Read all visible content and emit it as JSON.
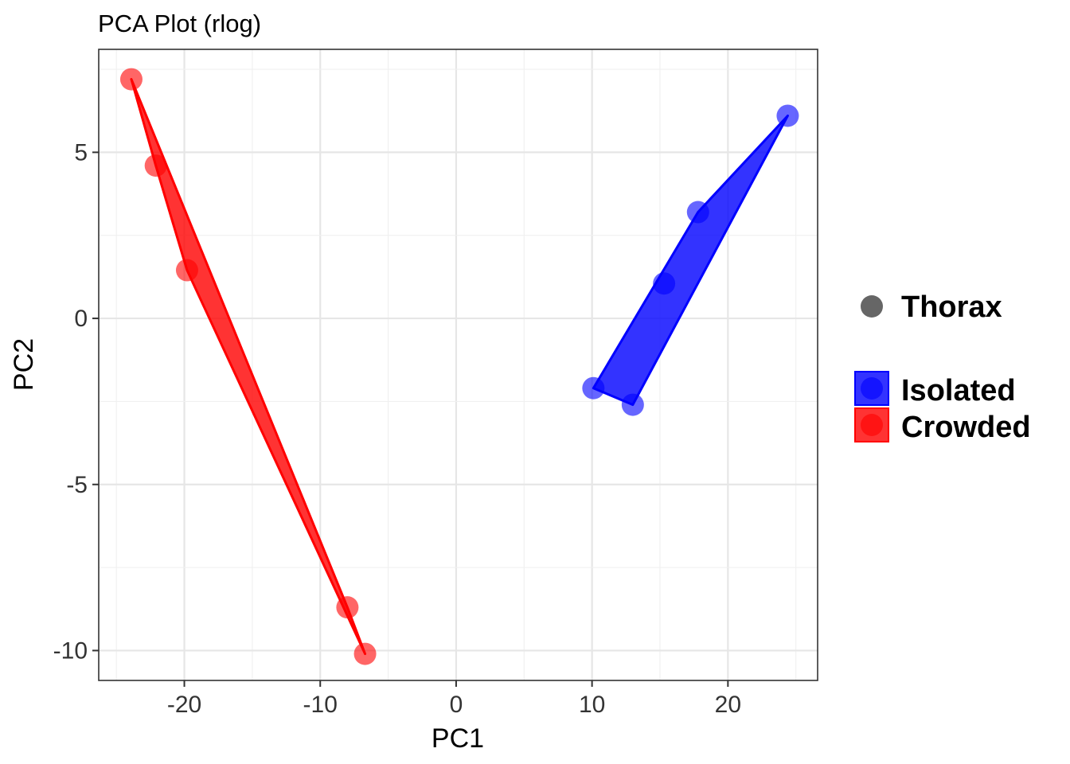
{
  "chart_data": {
    "type": "scatter",
    "title": "PCA Plot (rlog)",
    "xlabel": "PC1",
    "ylabel": "PC2",
    "xlim": [
      -26.3,
      26.6
    ],
    "ylim": [
      -10.9,
      8.1
    ],
    "x_ticks": [
      -20,
      -10,
      0,
      10,
      20
    ],
    "x_tick_labels": [
      "-20",
      "-10",
      "0",
      "10",
      "20"
    ],
    "y_ticks": [
      -10,
      -5,
      0,
      5
    ],
    "y_tick_labels": [
      "-10",
      "-5",
      "0",
      "5"
    ],
    "grid": true,
    "legend_position": "right",
    "shape_legend": {
      "label": "Thorax",
      "color": "#666666"
    },
    "series": [
      {
        "name": "Isolated",
        "color": "#0000ff",
        "points": [
          {
            "x": 24.4,
            "y": 6.1
          },
          {
            "x": 17.8,
            "y": 3.2
          },
          {
            "x": 15.3,
            "y": 1.05
          },
          {
            "x": 10.1,
            "y": -2.1
          },
          {
            "x": 13.0,
            "y": -2.6
          }
        ]
      },
      {
        "name": "Crowded",
        "color": "#ff0000",
        "points": [
          {
            "x": -23.9,
            "y": 7.2
          },
          {
            "x": -22.1,
            "y": 4.6
          },
          {
            "x": -19.8,
            "y": 1.45
          },
          {
            "x": -8.0,
            "y": -8.7
          },
          {
            "x": -6.7,
            "y": -10.1
          }
        ]
      }
    ]
  }
}
